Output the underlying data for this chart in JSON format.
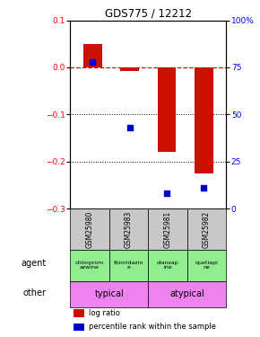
{
  "title": "GDS775 / 12212",
  "samples": [
    "GSM25980",
    "GSM25983",
    "GSM25981",
    "GSM25982"
  ],
  "log_ratios": [
    0.05,
    -0.008,
    -0.18,
    -0.225
  ],
  "percentile_ranks": [
    0.78,
    0.43,
    0.08,
    0.11
  ],
  "ylim": [
    -0.3,
    0.1
  ],
  "y2lim": [
    0,
    100
  ],
  "y_ticks": [
    0.1,
    0.0,
    -0.1,
    -0.2,
    -0.3
  ],
  "y2_ticks": [
    100,
    75,
    50,
    25,
    0
  ],
  "bar_color": "#cc1100",
  "dot_color": "#0000cc",
  "dashed_color": "#cc1100",
  "agent_labels": [
    "chlorprom\nazwine",
    "thioridazin\ne",
    "olanzap\nine",
    "quetiapi\nne"
  ],
  "agent_bg": "#90ee90",
  "other_bg": "#ee82ee",
  "sample_bg": "#c8c8c8",
  "legend_items": [
    "log ratio",
    "percentile rank within the sample"
  ],
  "dotted_ticks": [
    -0.1,
    -0.2
  ],
  "bar_width": 0.5
}
